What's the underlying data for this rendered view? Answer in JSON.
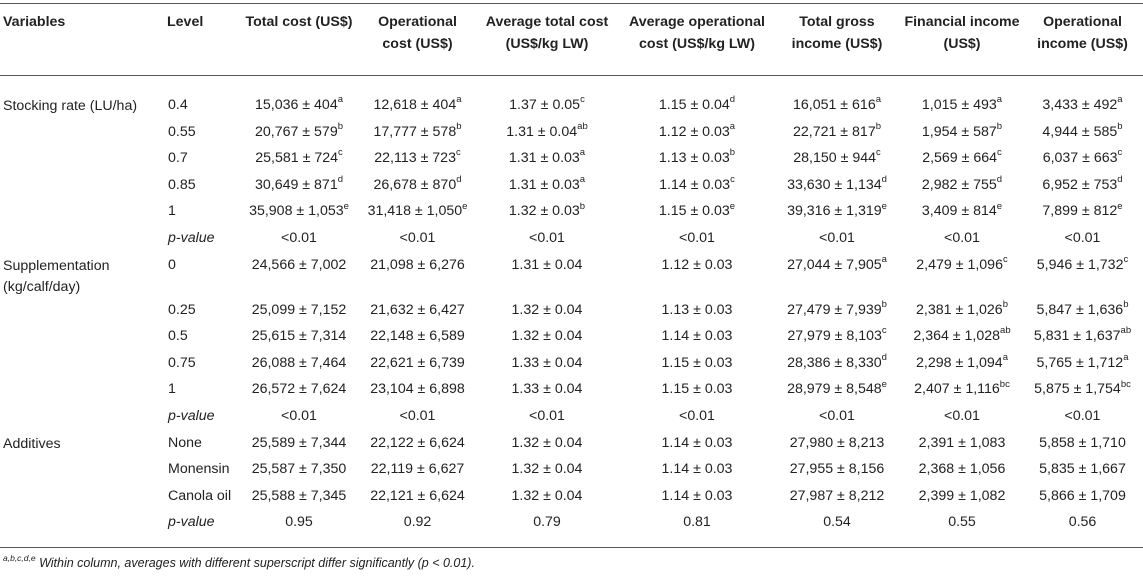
{
  "headers": [
    "Variables",
    "Level",
    "Total cost (US$)",
    "Operational cost (US$)",
    "Average total cost (US$/kg LW)",
    "Average operational cost (US$/kg LW)",
    "Total gross income (US$)",
    "Financial income (US$)",
    "Operational income (US$)"
  ],
  "rows": [
    {
      "variable": "Stocking rate (LU/ha)",
      "level": "0.4",
      "italic": false,
      "cells": [
        [
          "15,036 ± 404",
          "a"
        ],
        [
          "12,618 ± 404",
          "a"
        ],
        [
          "1.37 ± 0.05",
          "c"
        ],
        [
          "1.15 ± 0.04",
          "d"
        ],
        [
          "16,051 ± 616",
          "a"
        ],
        [
          "1,015 ± 493",
          "a"
        ],
        [
          "3,433 ± 492",
          "a"
        ]
      ]
    },
    {
      "variable": "",
      "level": "0.55",
      "italic": false,
      "cells": [
        [
          "20,767 ± 579",
          "b"
        ],
        [
          "17,777 ± 578",
          "b"
        ],
        [
          "1.31 ± 0.04",
          "ab"
        ],
        [
          "1.12 ± 0.03",
          "a"
        ],
        [
          "22,721 ± 817",
          "b"
        ],
        [
          "1,954 ± 587",
          "b"
        ],
        [
          "4,944 ± 585",
          "b"
        ]
      ]
    },
    {
      "variable": "",
      "level": "0.7",
      "italic": false,
      "cells": [
        [
          "25,581 ± 724",
          "c"
        ],
        [
          "22,113 ± 723",
          "c"
        ],
        [
          "1.31 ± 0.03",
          "a"
        ],
        [
          "1.13 ± 0.03",
          "b"
        ],
        [
          "28,150 ± 944",
          "c"
        ],
        [
          "2,569 ± 664",
          "c"
        ],
        [
          "6,037 ± 663",
          "c"
        ]
      ]
    },
    {
      "variable": "",
      "level": "0.85",
      "italic": false,
      "cells": [
        [
          "30,649 ± 871",
          "d"
        ],
        [
          "26,678 ± 870",
          "d"
        ],
        [
          "1.31 ± 0.03",
          "a"
        ],
        [
          "1.14 ± 0.03",
          "c"
        ],
        [
          "33,630 ± 1,134",
          "d"
        ],
        [
          "2,982 ± 755",
          "d"
        ],
        [
          "6,952 ± 753",
          "d"
        ]
      ]
    },
    {
      "variable": "",
      "level": "1",
      "italic": false,
      "cells": [
        [
          "35,908 ± 1,053",
          "e"
        ],
        [
          "31,418 ± 1,050",
          "e"
        ],
        [
          "1.32 ± 0.03",
          "b"
        ],
        [
          "1.15 ± 0.03",
          "e"
        ],
        [
          "39,316 ± 1,319",
          "e"
        ],
        [
          "3,409 ± 814",
          "e"
        ],
        [
          "7,899 ± 812",
          "e"
        ]
      ]
    },
    {
      "variable": "",
      "level": "p-value",
      "italic": true,
      "cells": [
        [
          "<0.01",
          ""
        ],
        [
          "<0.01",
          ""
        ],
        [
          "<0.01",
          ""
        ],
        [
          "<0.01",
          ""
        ],
        [
          "<0.01",
          ""
        ],
        [
          "<0.01",
          ""
        ],
        [
          "<0.01",
          ""
        ]
      ]
    },
    {
      "variable": "Supplementation (kg/calf/day)",
      "level": "0",
      "italic": false,
      "tall": true,
      "cells": [
        [
          "24,566 ± 7,002",
          ""
        ],
        [
          "21,098 ± 6,276",
          ""
        ],
        [
          "1.31 ± 0.04",
          ""
        ],
        [
          "1.12 ± 0.03",
          ""
        ],
        [
          "27,044 ± 7,905",
          "a"
        ],
        [
          "2,479 ± 1,096",
          "c"
        ],
        [
          "5,946 ± 1,732",
          "c"
        ]
      ]
    },
    {
      "variable": "",
      "level": "0.25",
      "italic": false,
      "cells": [
        [
          "25,099 ± 7,152",
          ""
        ],
        [
          "21,632 ± 6,427",
          ""
        ],
        [
          "1.32 ± 0.04",
          ""
        ],
        [
          "1.13 ± 0.03",
          ""
        ],
        [
          "27,479 ± 7,939",
          "b"
        ],
        [
          "2,381 ± 1,026",
          "b"
        ],
        [
          "5,847 ± 1,636",
          "b"
        ]
      ]
    },
    {
      "variable": "",
      "level": "0.5",
      "italic": false,
      "cells": [
        [
          "25,615 ± 7,314",
          ""
        ],
        [
          "22,148 ± 6,589",
          ""
        ],
        [
          "1.32 ± 0.04",
          ""
        ],
        [
          "1.14 ± 0.03",
          ""
        ],
        [
          "27,979 ± 8,103",
          "c"
        ],
        [
          "2,364 ± 1,028",
          "ab"
        ],
        [
          "5,831 ± 1,637",
          "ab"
        ]
      ]
    },
    {
      "variable": "",
      "level": "0.75",
      "italic": false,
      "cells": [
        [
          "26,088 ± 7,464",
          ""
        ],
        [
          "22,621 ± 6,739",
          ""
        ],
        [
          "1.33 ± 0.04",
          ""
        ],
        [
          "1.15 ± 0.03",
          ""
        ],
        [
          "28,386 ± 8,330",
          "d"
        ],
        [
          "2,298 ± 1,094",
          "a"
        ],
        [
          "5,765 ± 1,712",
          "a"
        ]
      ]
    },
    {
      "variable": "",
      "level": "1",
      "italic": false,
      "cells": [
        [
          "26,572 ± 7,624",
          ""
        ],
        [
          "23,104 ± 6,898",
          ""
        ],
        [
          "1.33 ± 0.04",
          ""
        ],
        [
          "1.15 ± 0.03",
          ""
        ],
        [
          "28,979 ± 8,548",
          "e"
        ],
        [
          "2,407 ± 1,116",
          "bc"
        ],
        [
          "5,875 ± 1,754",
          "bc"
        ]
      ]
    },
    {
      "variable": "",
      "level": "p-value",
      "italic": true,
      "cells": [
        [
          "<0.01",
          ""
        ],
        [
          "<0.01",
          ""
        ],
        [
          "<0.01",
          ""
        ],
        [
          "<0.01",
          ""
        ],
        [
          "<0.01",
          ""
        ],
        [
          "<0.01",
          ""
        ],
        [
          "<0.01",
          ""
        ]
      ]
    },
    {
      "variable": "Additives",
      "level": "None",
      "italic": false,
      "cells": [
        [
          "25,589 ± 7,344",
          ""
        ],
        [
          "22,122 ± 6,624",
          ""
        ],
        [
          "1.32 ± 0.04",
          ""
        ],
        [
          "1.14 ± 0.03",
          ""
        ],
        [
          "27,980 ± 8,213",
          ""
        ],
        [
          "2,391 ± 1,083",
          ""
        ],
        [
          "5,858 ± 1,710",
          ""
        ]
      ]
    },
    {
      "variable": "",
      "level": "Monensin",
      "italic": false,
      "cells": [
        [
          "25,587 ± 7,350",
          ""
        ],
        [
          "22,119 ± 6,627",
          ""
        ],
        [
          "1.32 ± 0.04",
          ""
        ],
        [
          "1.14 ± 0.03",
          ""
        ],
        [
          "27,955 ± 8,156",
          ""
        ],
        [
          "2,368 ± 1,056",
          ""
        ],
        [
          "5,835 ± 1,667",
          ""
        ]
      ]
    },
    {
      "variable": "",
      "level": "Canola oil",
      "italic": false,
      "cells": [
        [
          "25,588 ± 7,345",
          ""
        ],
        [
          "22,121 ± 6,624",
          ""
        ],
        [
          "1.32 ± 0.04",
          ""
        ],
        [
          "1.14 ± 0.03",
          ""
        ],
        [
          "27,987 ± 8,212",
          ""
        ],
        [
          "2,399 ± 1,082",
          ""
        ],
        [
          "5,866 ± 1,709",
          ""
        ]
      ]
    },
    {
      "variable": "",
      "level": "p-value",
      "italic": true,
      "cells": [
        [
          "0.95",
          ""
        ],
        [
          "0.92",
          ""
        ],
        [
          "0.79",
          ""
        ],
        [
          "0.81",
          ""
        ],
        [
          "0.54",
          ""
        ],
        [
          "0.55",
          ""
        ],
        [
          "0.56",
          ""
        ]
      ]
    }
  ],
  "footnote": {
    "superscripts": "a,b,c,d,e",
    "text": " Within column, averages with different superscript differ significantly (p < 0.01)."
  }
}
